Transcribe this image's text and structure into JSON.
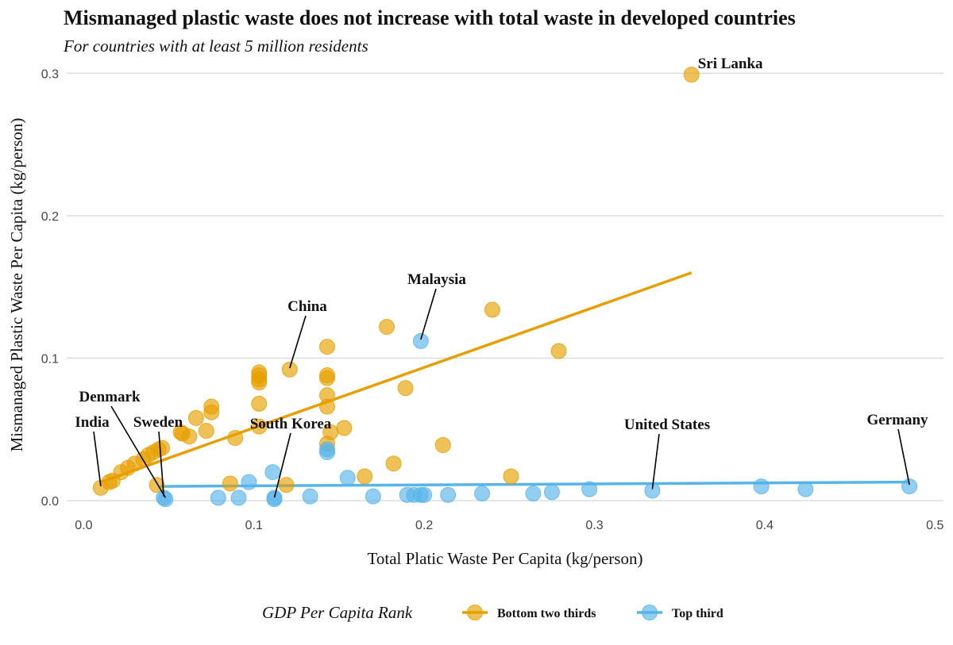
{
  "chart_data": {
    "type": "scatter",
    "title": "Mismanaged plastic waste does not increase with total waste in developed countries",
    "subtitle": "For countries with at least 5 million residents",
    "xlabel": "Total Platic Waste Per Capita (kg/person)",
    "ylabel": "Mismanaged Plastic Waste Per Capita (kg/person)",
    "xlim": [
      -0.01,
      0.505
    ],
    "ylim": [
      -0.005,
      0.308
    ],
    "x_ticks": [
      0.0,
      0.1,
      0.2,
      0.3,
      0.4,
      0.5
    ],
    "x_tick_labels": [
      "0.0",
      "0.1",
      "0.2",
      "0.3",
      "0.4",
      "0.5"
    ],
    "y_ticks": [
      0.0,
      0.1,
      0.2,
      0.3
    ],
    "y_tick_labels": [
      "0.0",
      "0.1",
      "0.2",
      "0.3"
    ],
    "grid": "horizontal",
    "legend": {
      "title": "GDP Per Capita Rank",
      "position": "bottom"
    },
    "series": [
      {
        "name": "Bottom two thirds",
        "color": "#E69F00",
        "trend": {
          "x": [
            0.01,
            0.357
          ],
          "y": [
            0.013,
            0.16
          ]
        },
        "points": [
          [
            0.01,
            0.009
          ],
          [
            0.015,
            0.013
          ],
          [
            0.017,
            0.014
          ],
          [
            0.022,
            0.02
          ],
          [
            0.026,
            0.023
          ],
          [
            0.03,
            0.026
          ],
          [
            0.035,
            0.029
          ],
          [
            0.038,
            0.032
          ],
          [
            0.041,
            0.034
          ],
          [
            0.044,
            0.036
          ],
          [
            0.046,
            0.037
          ],
          [
            0.043,
            0.011
          ],
          [
            0.057,
            0.048
          ],
          [
            0.058,
            0.047
          ],
          [
            0.062,
            0.045
          ],
          [
            0.066,
            0.058
          ],
          [
            0.072,
            0.049
          ],
          [
            0.075,
            0.066
          ],
          [
            0.075,
            0.062
          ],
          [
            0.086,
            0.012
          ],
          [
            0.089,
            0.044
          ],
          [
            0.103,
            0.09
          ],
          [
            0.103,
            0.088
          ],
          [
            0.103,
            0.085
          ],
          [
            0.103,
            0.083
          ],
          [
            0.103,
            0.068
          ],
          [
            0.103,
            0.052
          ],
          [
            0.119,
            0.011
          ],
          [
            0.121,
            0.092
          ],
          [
            0.143,
            0.108
          ],
          [
            0.143,
            0.088
          ],
          [
            0.143,
            0.086
          ],
          [
            0.143,
            0.074
          ],
          [
            0.143,
            0.066
          ],
          [
            0.143,
            0.04
          ],
          [
            0.145,
            0.048
          ],
          [
            0.153,
            0.051
          ],
          [
            0.165,
            0.017
          ],
          [
            0.178,
            0.122
          ],
          [
            0.182,
            0.026
          ],
          [
            0.189,
            0.079
          ],
          [
            0.211,
            0.039
          ],
          [
            0.24,
            0.134
          ],
          [
            0.251,
            0.017
          ],
          [
            0.279,
            0.105
          ],
          [
            0.357,
            0.299
          ]
        ]
      },
      {
        "name": "Top third",
        "color": "#56B4E9",
        "trend": {
          "x": [
            0.045,
            0.485
          ],
          "y": [
            0.01,
            0.013
          ]
        },
        "points": [
          [
            0.047,
            0.002
          ],
          [
            0.048,
            0.001
          ],
          [
            0.079,
            0.002
          ],
          [
            0.091,
            0.002
          ],
          [
            0.097,
            0.013
          ],
          [
            0.111,
            0.02
          ],
          [
            0.112,
            0.001
          ],
          [
            0.112,
            0.002
          ],
          [
            0.133,
            0.003
          ],
          [
            0.143,
            0.036
          ],
          [
            0.143,
            0.034
          ],
          [
            0.155,
            0.016
          ],
          [
            0.17,
            0.003
          ],
          [
            0.19,
            0.004
          ],
          [
            0.194,
            0.004
          ],
          [
            0.198,
            0.112
          ],
          [
            0.198,
            0.004
          ],
          [
            0.2,
            0.004
          ],
          [
            0.214,
            0.004
          ],
          [
            0.234,
            0.005
          ],
          [
            0.264,
            0.005
          ],
          [
            0.275,
            0.006
          ],
          [
            0.297,
            0.008
          ],
          [
            0.334,
            0.007
          ],
          [
            0.398,
            0.01
          ],
          [
            0.424,
            0.008
          ],
          [
            0.485,
            0.01
          ]
        ]
      }
    ],
    "annotations": [
      {
        "label": "Sri Lanka",
        "x": 0.357,
        "y": 0.299
      },
      {
        "label": "Malaysia",
        "x": 0.198,
        "y": 0.112
      },
      {
        "label": "China",
        "x": 0.121,
        "y": 0.092
      },
      {
        "label": "Denmark",
        "x": 0.048,
        "y": 0.001
      },
      {
        "label": "India",
        "x": 0.01,
        "y": 0.009
      },
      {
        "label": "Sweden",
        "x": 0.047,
        "y": 0.002
      },
      {
        "label": "South Korea",
        "x": 0.112,
        "y": 0.001
      },
      {
        "label": "United States",
        "x": 0.334,
        "y": 0.007
      },
      {
        "label": "Germany",
        "x": 0.485,
        "y": 0.01
      }
    ]
  }
}
